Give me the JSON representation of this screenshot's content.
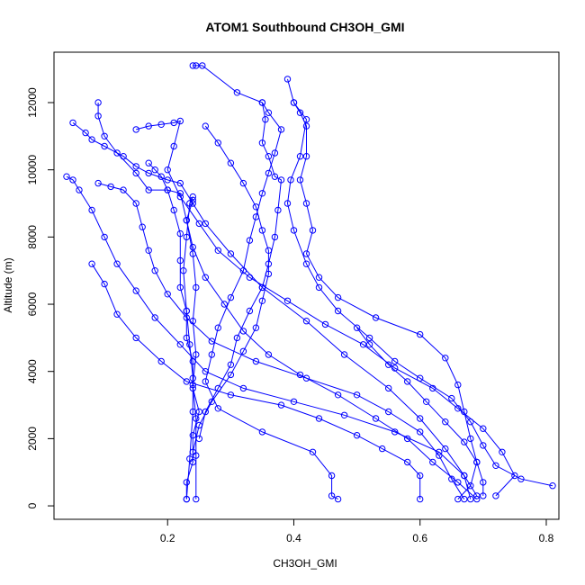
{
  "chart_data": {
    "type": "scatter",
    "title": "ATOM1 Southbound CH3OH_GMI",
    "xlabel": "CH3OH_GMI",
    "ylabel": "Altitude (m)",
    "xlim": [
      0.02,
      0.82
    ],
    "ylim": [
      -400,
      13500
    ],
    "xticks": [
      0.2,
      0.4,
      0.6,
      0.8
    ],
    "xtick_labels": [
      "0.2",
      "0.4",
      "0.6",
      "0.8"
    ],
    "yticks": [
      0,
      2000,
      4000,
      6000,
      8000,
      10000,
      12000
    ],
    "ytick_labels": [
      "0",
      "2000",
      "4000",
      "6000",
      "8000",
      "10000",
      "12000"
    ],
    "grid": false,
    "legend": "none",
    "marker": "open-circle",
    "connect_points": true,
    "series_color": "#0000ff",
    "series": [
      {
        "points": [
          [
            0.23,
            200
          ],
          [
            0.235,
            1400
          ],
          [
            0.24,
            2800
          ],
          [
            0.24,
            3800
          ],
          [
            0.235,
            4800
          ],
          [
            0.23,
            5800
          ],
          [
            0.225,
            7000
          ],
          [
            0.23,
            8000
          ],
          [
            0.235,
            9000
          ],
          [
            0.24,
            9200
          ]
        ]
      },
      {
        "points": [
          [
            0.245,
            200
          ],
          [
            0.245,
            1500
          ],
          [
            0.245,
            2600
          ],
          [
            0.24,
            3600
          ],
          [
            0.245,
            4500
          ],
          [
            0.24,
            5500
          ],
          [
            0.245,
            6500
          ],
          [
            0.24,
            7500
          ],
          [
            0.23,
            8500
          ],
          [
            0.24,
            9100
          ]
        ]
      },
      {
        "points": [
          [
            0.24,
            13100
          ],
          [
            0.245,
            13100
          ],
          [
            0.255,
            13100
          ],
          [
            0.31,
            12300
          ],
          [
            0.35,
            12000
          ],
          [
            0.355,
            11500
          ],
          [
            0.35,
            10800
          ],
          [
            0.36,
            10400
          ],
          [
            0.37,
            9800
          ],
          [
            0.38,
            9700
          ],
          [
            0.375,
            8800
          ],
          [
            0.37,
            8000
          ],
          [
            0.36,
            7200
          ],
          [
            0.35,
            6500
          ],
          [
            0.33,
            5800
          ],
          [
            0.31,
            5000
          ],
          [
            0.3,
            4200
          ],
          [
            0.28,
            3500
          ],
          [
            0.26,
            2800
          ],
          [
            0.25,
            2000
          ]
        ]
      },
      {
        "points": [
          [
            0.39,
            12700
          ],
          [
            0.4,
            12000
          ],
          [
            0.42,
            11500
          ],
          [
            0.41,
            10400
          ],
          [
            0.395,
            9700
          ],
          [
            0.39,
            9000
          ],
          [
            0.4,
            8200
          ],
          [
            0.42,
            7200
          ],
          [
            0.44,
            6500
          ],
          [
            0.47,
            5800
          ],
          [
            0.52,
            5000
          ],
          [
            0.56,
            4300
          ],
          [
            0.6,
            3800
          ],
          [
            0.65,
            3200
          ],
          [
            0.68,
            2500
          ],
          [
            0.7,
            1800
          ],
          [
            0.72,
            1200
          ],
          [
            0.76,
            800
          ],
          [
            0.81,
            600
          ]
        ]
      },
      {
        "points": [
          [
            0.05,
            11400
          ],
          [
            0.07,
            11100
          ],
          [
            0.08,
            10900
          ],
          [
            0.1,
            10700
          ],
          [
            0.13,
            10400
          ],
          [
            0.15,
            10100
          ],
          [
            0.17,
            9900
          ],
          [
            0.2,
            9700
          ],
          [
            0.22,
            9600
          ],
          [
            0.24,
            9000
          ],
          [
            0.26,
            8400
          ],
          [
            0.3,
            7500
          ],
          [
            0.35,
            6500
          ],
          [
            0.42,
            5500
          ],
          [
            0.48,
            4500
          ],
          [
            0.55,
            3500
          ],
          [
            0.6,
            2600
          ],
          [
            0.64,
            1700
          ],
          [
            0.67,
            900
          ],
          [
            0.68,
            200
          ]
        ]
      },
      {
        "points": [
          [
            0.04,
            9800
          ],
          [
            0.05,
            9700
          ],
          [
            0.06,
            9400
          ],
          [
            0.08,
            8800
          ],
          [
            0.1,
            8000
          ],
          [
            0.12,
            7200
          ],
          [
            0.15,
            6400
          ],
          [
            0.18,
            5600
          ],
          [
            0.22,
            4800
          ],
          [
            0.26,
            4000
          ],
          [
            0.32,
            3500
          ],
          [
            0.4,
            3100
          ],
          [
            0.48,
            2700
          ],
          [
            0.56,
            2200
          ],
          [
            0.63,
            1600
          ],
          [
            0.67,
            900
          ],
          [
            0.69,
            300
          ]
        ]
      },
      {
        "points": [
          [
            0.09,
            12000
          ],
          [
            0.09,
            11600
          ],
          [
            0.1,
            11000
          ],
          [
            0.12,
            10500
          ],
          [
            0.15,
            9900
          ],
          [
            0.17,
            9400
          ],
          [
            0.2,
            9400
          ],
          [
            0.22,
            9300
          ],
          [
            0.23,
            8500
          ],
          [
            0.24,
            7700
          ],
          [
            0.26,
            6800
          ],
          [
            0.29,
            6000
          ],
          [
            0.32,
            5200
          ],
          [
            0.36,
            4500
          ],
          [
            0.41,
            3900
          ],
          [
            0.47,
            3300
          ],
          [
            0.53,
            2600
          ],
          [
            0.58,
            2000
          ],
          [
            0.62,
            1300
          ],
          [
            0.66,
            700
          ],
          [
            0.69,
            200
          ]
        ]
      },
      {
        "points": [
          [
            0.15,
            11200
          ],
          [
            0.17,
            11300
          ],
          [
            0.19,
            11350
          ],
          [
            0.21,
            11400
          ],
          [
            0.22,
            11450
          ],
          [
            0.21,
            10700
          ],
          [
            0.2,
            10000
          ],
          [
            0.22,
            9200
          ],
          [
            0.25,
            8400
          ],
          [
            0.28,
            7600
          ],
          [
            0.33,
            6800
          ],
          [
            0.39,
            6100
          ],
          [
            0.45,
            5400
          ],
          [
            0.51,
            4800
          ],
          [
            0.56,
            4100
          ],
          [
            0.62,
            3500
          ],
          [
            0.66,
            2900
          ],
          [
            0.7,
            2300
          ],
          [
            0.73,
            1600
          ],
          [
            0.75,
            900
          ],
          [
            0.72,
            300
          ]
        ]
      },
      {
        "points": [
          [
            0.08,
            7200
          ],
          [
            0.1,
            6600
          ],
          [
            0.12,
            5700
          ],
          [
            0.15,
            5000
          ],
          [
            0.19,
            4300
          ],
          [
            0.23,
            3700
          ],
          [
            0.3,
            3300
          ],
          [
            0.38,
            3000
          ],
          [
            0.44,
            2600
          ],
          [
            0.5,
            2100
          ],
          [
            0.54,
            1700
          ],
          [
            0.58,
            1300
          ],
          [
            0.6,
            900
          ],
          [
            0.6,
            200
          ]
        ]
      },
      {
        "points": [
          [
            0.35,
            12000
          ],
          [
            0.36,
            11700
          ],
          [
            0.38,
            11200
          ],
          [
            0.37,
            10500
          ],
          [
            0.36,
            9900
          ],
          [
            0.35,
            9300
          ],
          [
            0.34,
            8600
          ],
          [
            0.33,
            7900
          ],
          [
            0.32,
            7000
          ],
          [
            0.3,
            6200
          ],
          [
            0.28,
            5300
          ],
          [
            0.27,
            4500
          ],
          [
            0.26,
            3700
          ],
          [
            0.28,
            2900
          ],
          [
            0.35,
            2200
          ],
          [
            0.43,
            1600
          ],
          [
            0.46,
            900
          ],
          [
            0.46,
            300
          ],
          [
            0.47,
            200
          ]
        ]
      },
      {
        "points": [
          [
            0.4,
            12000
          ],
          [
            0.41,
            11700
          ],
          [
            0.42,
            11300
          ],
          [
            0.42,
            10400
          ],
          [
            0.41,
            9700
          ],
          [
            0.42,
            9000
          ],
          [
            0.43,
            8200
          ],
          [
            0.42,
            7500
          ],
          [
            0.44,
            6800
          ],
          [
            0.47,
            6200
          ],
          [
            0.53,
            5600
          ],
          [
            0.6,
            5100
          ],
          [
            0.64,
            4400
          ],
          [
            0.66,
            3600
          ],
          [
            0.67,
            2800
          ],
          [
            0.68,
            2000
          ],
          [
            0.69,
            1300
          ],
          [
            0.68,
            600
          ],
          [
            0.66,
            200
          ]
        ]
      },
      {
        "points": [
          [
            0.09,
            9600
          ],
          [
            0.11,
            9500
          ],
          [
            0.13,
            9400
          ],
          [
            0.15,
            9000
          ],
          [
            0.16,
            8300
          ],
          [
            0.17,
            7600
          ],
          [
            0.18,
            7000
          ],
          [
            0.2,
            6300
          ],
          [
            0.23,
            5600
          ],
          [
            0.27,
            4900
          ],
          [
            0.34,
            4300
          ],
          [
            0.42,
            3800
          ],
          [
            0.5,
            3300
          ],
          [
            0.55,
            2800
          ],
          [
            0.6,
            2200
          ],
          [
            0.63,
            1500
          ],
          [
            0.65,
            800
          ],
          [
            0.67,
            200
          ]
        ]
      },
      {
        "points": [
          [
            0.26,
            11300
          ],
          [
            0.28,
            10800
          ],
          [
            0.3,
            10200
          ],
          [
            0.32,
            9600
          ],
          [
            0.34,
            8900
          ],
          [
            0.35,
            8200
          ],
          [
            0.36,
            7600
          ],
          [
            0.36,
            6900
          ],
          [
            0.35,
            6100
          ],
          [
            0.34,
            5300
          ],
          [
            0.32,
            4600
          ],
          [
            0.3,
            3900
          ],
          [
            0.27,
            3100
          ],
          [
            0.25,
            2400
          ],
          [
            0.24,
            1600
          ]
        ]
      },
      {
        "points": [
          [
            0.17,
            10200
          ],
          [
            0.18,
            10000
          ],
          [
            0.19,
            9800
          ],
          [
            0.2,
            9400
          ],
          [
            0.21,
            8800
          ],
          [
            0.22,
            8100
          ],
          [
            0.22,
            7300
          ],
          [
            0.22,
            6500
          ],
          [
            0.23,
            5800
          ],
          [
            0.23,
            5000
          ],
          [
            0.24,
            4300
          ],
          [
            0.24,
            3500
          ],
          [
            0.25,
            2800
          ],
          [
            0.24,
            2100
          ],
          [
            0.24,
            1300
          ],
          [
            0.23,
            700
          ],
          [
            0.23,
            200
          ]
        ]
      },
      {
        "points": [
          [
            0.5,
            5300
          ],
          [
            0.52,
            4800
          ],
          [
            0.55,
            4200
          ],
          [
            0.58,
            3700
          ],
          [
            0.61,
            3100
          ],
          [
            0.64,
            2500
          ],
          [
            0.67,
            1900
          ],
          [
            0.69,
            1300
          ],
          [
            0.7,
            700
          ],
          [
            0.7,
            300
          ]
        ]
      }
    ]
  }
}
